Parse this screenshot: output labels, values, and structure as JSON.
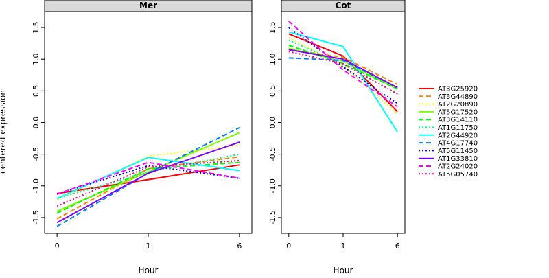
{
  "figure": {
    "ylabel": "centered expression",
    "xlabel": "Hour"
  },
  "chart_data": [
    {
      "type": "line",
      "title": "Mer",
      "xlabel": "Hour",
      "ylabel": "centered expression",
      "x": [
        "0",
        "1",
        "6"
      ],
      "ylim": [
        -1.75,
        1.75
      ],
      "yticks": [
        -1.5,
        -1.0,
        -0.5,
        0.0,
        0.5,
        1.0,
        1.5
      ],
      "grid": false,
      "series": [
        {
          "name": "AT3G25920",
          "color": "#ff0000",
          "dash": "solid",
          "values": [
            -1.12,
            -0.9,
            -0.67
          ]
        },
        {
          "name": "AT3G44890",
          "color": "#ff8000",
          "dash": "dashed",
          "values": [
            -1.52,
            -0.73,
            -0.54
          ]
        },
        {
          "name": "AT2G20890",
          "color": "#ffff00",
          "dash": "dotted",
          "values": [
            -1.22,
            -0.53,
            -0.36
          ]
        },
        {
          "name": "AT5G17520",
          "color": "#80ff00",
          "dash": "solid",
          "values": [
            -1.4,
            -0.78,
            -0.16
          ]
        },
        {
          "name": "AT3G14110",
          "color": "#00ff00",
          "dash": "dashed",
          "values": [
            -1.43,
            -0.73,
            -0.63
          ]
        },
        {
          "name": "AT1G11750",
          "color": "#00ff80",
          "dash": "dotted",
          "values": [
            -1.2,
            -0.78,
            -0.5
          ]
        },
        {
          "name": "AT2G44920",
          "color": "#00ffff",
          "dash": "solid",
          "values": [
            -1.2,
            -0.55,
            -0.76
          ]
        },
        {
          "name": "AT4G17740",
          "color": "#0080ff",
          "dash": "dashed",
          "values": [
            -1.64,
            -0.8,
            -0.08
          ]
        },
        {
          "name": "AT5G11450",
          "color": "#0000ff",
          "dash": "dotted",
          "values": [
            -1.13,
            -0.68,
            -0.88
          ]
        },
        {
          "name": "AT1G33810",
          "color": "#8000ff",
          "dash": "solid",
          "values": [
            -1.58,
            -0.8,
            -0.31
          ]
        },
        {
          "name": "AT2G24020",
          "color": "#ff00ff",
          "dash": "dashed",
          "values": [
            -1.13,
            -0.63,
            -0.88
          ]
        },
        {
          "name": "AT5G05740",
          "color": "#ff0080",
          "dash": "dotted",
          "values": [
            -1.32,
            -0.7,
            -0.6
          ]
        }
      ]
    },
    {
      "type": "line",
      "title": "Cot",
      "xlabel": "Hour",
      "ylabel": "",
      "x": [
        "0",
        "1",
        "6"
      ],
      "ylim": [
        -1.75,
        1.75
      ],
      "yticks": [
        -1.5,
        -1.0,
        -0.5,
        0.0,
        0.5,
        1.0,
        1.5
      ],
      "grid": false,
      "series": [
        {
          "name": "AT3G25920",
          "color": "#ff0000",
          "dash": "solid",
          "values": [
            1.4,
            1.05,
            0.17
          ]
        },
        {
          "name": "AT3G44890",
          "color": "#ff8000",
          "dash": "dashed",
          "values": [
            1.15,
            1.03,
            0.6
          ]
        },
        {
          "name": "AT2G20890",
          "color": "#ffff00",
          "dash": "dotted",
          "values": [
            1.34,
            0.9,
            0.14
          ]
        },
        {
          "name": "AT5G17520",
          "color": "#80ff00",
          "dash": "solid",
          "values": [
            1.17,
            0.97,
            0.53
          ]
        },
        {
          "name": "AT3G14110",
          "color": "#00ff00",
          "dash": "dashed",
          "values": [
            1.22,
            0.93,
            0.53
          ]
        },
        {
          "name": "AT1G11750",
          "color": "#00ff80",
          "dash": "dotted",
          "values": [
            1.3,
            0.92,
            0.45
          ]
        },
        {
          "name": "AT2G44920",
          "color": "#00ffff",
          "dash": "solid",
          "values": [
            1.43,
            1.2,
            -0.15
          ]
        },
        {
          "name": "AT4G17740",
          "color": "#0080ff",
          "dash": "dashed",
          "values": [
            1.02,
            0.98,
            0.55
          ]
        },
        {
          "name": "AT5G11450",
          "color": "#0000ff",
          "dash": "dotted",
          "values": [
            1.5,
            0.88,
            0.3
          ]
        },
        {
          "name": "AT1G33810",
          "color": "#8000ff",
          "dash": "solid",
          "values": [
            1.15,
            1.0,
            0.55
          ]
        },
        {
          "name": "AT2G24020",
          "color": "#ff00ff",
          "dash": "dashed",
          "values": [
            1.6,
            0.83,
            0.25
          ]
        },
        {
          "name": "AT5G05740",
          "color": "#ff0080",
          "dash": "dotted",
          "values": [
            1.12,
            0.93,
            0.45
          ]
        }
      ]
    }
  ],
  "legend": {
    "placement": "right",
    "entries": [
      "AT3G25920",
      "AT3G44890",
      "AT2G20890",
      "AT5G17520",
      "AT3G14110",
      "AT1G11750",
      "AT2G44920",
      "AT4G17740",
      "AT5G11450",
      "AT1G33810",
      "AT2G24020",
      "AT5G05740"
    ]
  }
}
